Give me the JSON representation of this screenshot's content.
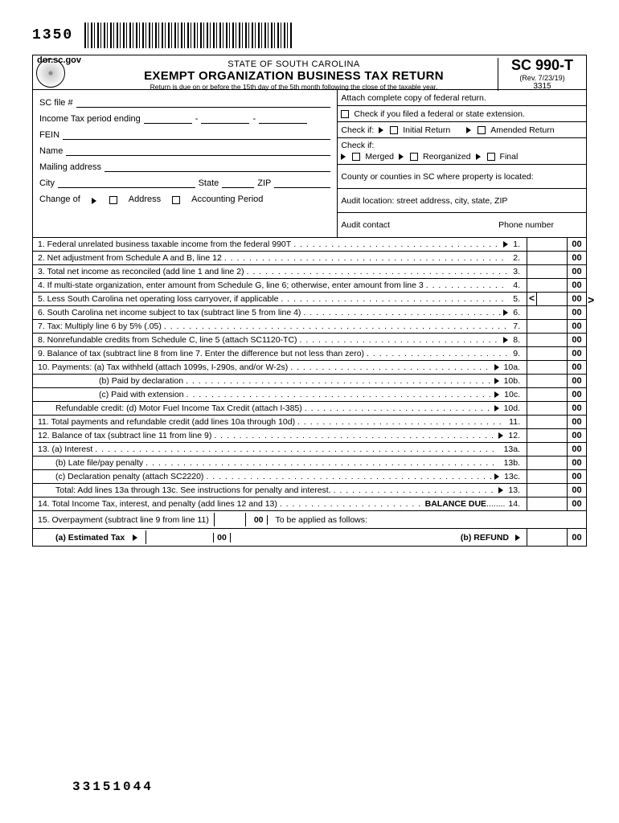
{
  "top": {
    "form_number": "1350"
  },
  "header": {
    "domain": "dor.sc.gov",
    "state_line": "STATE OF SOUTH CAROLINA",
    "title": "EXEMPT ORGANIZATION BUSINESS TAX RETURN",
    "due": "Return is due on or before the 15th day of the 5th month following the close of the taxable year.",
    "form_code": "SC 990-T",
    "rev": "(Rev. 7/23/19)",
    "code": "3315"
  },
  "left": {
    "sc_file": "SC file #",
    "period": "Income Tax period ending",
    "fein": "FEIN",
    "name": "Name",
    "mail": "Mailing address",
    "city": "City",
    "state": "State",
    "zip": "ZIP",
    "change": "Change of",
    "addr": "Address",
    "acct": "Accounting Period"
  },
  "right": {
    "attach": "Attach complete copy of federal return.",
    "extension": "Check if you filed a federal or state extension.",
    "checkif": "Check if:",
    "initial": "Initial Return",
    "amended": "Amended Return",
    "merged": "Merged",
    "reorg": "Reorganized",
    "final": "Final",
    "county": "County or counties in SC where property is located:",
    "audit_loc": "Audit location: street address, city, state, ZIP",
    "audit_contact": "Audit contact",
    "phone": "Phone number"
  },
  "lines": [
    {
      "n": "1.",
      "t": "Federal unrelated business taxable income from the federal 990T",
      "r": "1.",
      "tri": true
    },
    {
      "n": "2.",
      "t": "Net adjustment from Schedule A and B, line 12",
      "r": "2."
    },
    {
      "n": "3.",
      "t": "Total net income as reconciled (add line 1 and line 2)",
      "r": "3."
    },
    {
      "n": "4.",
      "t": "If multi-state organization, enter amount from Schedule G, line 6; otherwise, enter amount from line 3",
      "r": "4."
    },
    {
      "n": "5.",
      "t": "Less South Carolina net operating loss carryover, if applicable",
      "r": "5.",
      "mark": true
    },
    {
      "n": "6.",
      "t": "South Carolina net income subject to tax (subtract line 5 from line 4)",
      "r": "6.",
      "tri": true
    },
    {
      "n": "7.",
      "t": "Tax: Multiply line 6 by 5% (.05)",
      "r": "7."
    },
    {
      "n": "8.",
      "t": "Nonrefundable credits from Schedule C, line 5 (attach SC1120-TC)",
      "r": "8.",
      "tri": true
    },
    {
      "n": "9.",
      "t": "Balance of tax (subtract line 8 from line 7. Enter the difference but not less than zero)",
      "r": "9."
    },
    {
      "n": "10.",
      "t": "Payments:  (a) Tax withheld (attach 1099s, I-290s, and/or W-2s)",
      "r": "10a.",
      "tri": true
    },
    {
      "n": "",
      "t": "(b) Paid by declaration",
      "r": "10b.",
      "tri": true,
      "ind": true
    },
    {
      "n": "",
      "t": "(c) Paid with extension",
      "r": "10c.",
      "tri": true,
      "ind": true
    },
    {
      "n": "",
      "t": "Refundable credit: (d) Motor Fuel Income Tax Credit (attach I-385)",
      "r": "10d.",
      "tri": true,
      "ind2": true
    },
    {
      "n": "11.",
      "t": "Total payments and refundable credit (add lines 10a through 10d)",
      "r": "11."
    },
    {
      "n": "12.",
      "t": "Balance of tax (subtract line 11 from line 9)",
      "r": "12.",
      "tri": true
    },
    {
      "n": "13.",
      "t": "(a) Interest",
      "r": "13a."
    },
    {
      "n": "",
      "t": "(b) Late file/pay penalty",
      "r": "13b.",
      "ind2": true
    },
    {
      "n": "",
      "t": "(c) Declaration penalty (attach SC2220)",
      "r": "13c.",
      "tri": true,
      "ind2": true
    },
    {
      "n": "",
      "t": "Total: Add lines 13a through 13c. See instructions for penalty and interest.",
      "r": "13.",
      "tri": true,
      "ind2": true
    },
    {
      "n": "14.",
      "t": "Total Income Tax, interest, and penalty (add lines 12 and 13)",
      "r": "14.",
      "balance_due": true
    }
  ],
  "line15": {
    "a_label": "15. Overpayment (subtract line 9 from line 11)",
    "a_cents": "00",
    "applied": "To be applied as follows:",
    "est": "(a) Estimated Tax",
    "est_cents": "00",
    "refund": "(b) REFUND",
    "refund_cents": "00"
  },
  "balance_due": "BALANCE DUE",
  "cents": "00",
  "footer_code": "33151044",
  "dots": ". . . . . . . . . . . . . . . . . . . . . . . . . . . . . . . . . . . . . . . . . . . . . . . . . . . . . . . . . . . . . . . . . . . . . . . . . . . . . . . . . . . . . . . . . . . . . . . . . . . . . . . . . ."
}
